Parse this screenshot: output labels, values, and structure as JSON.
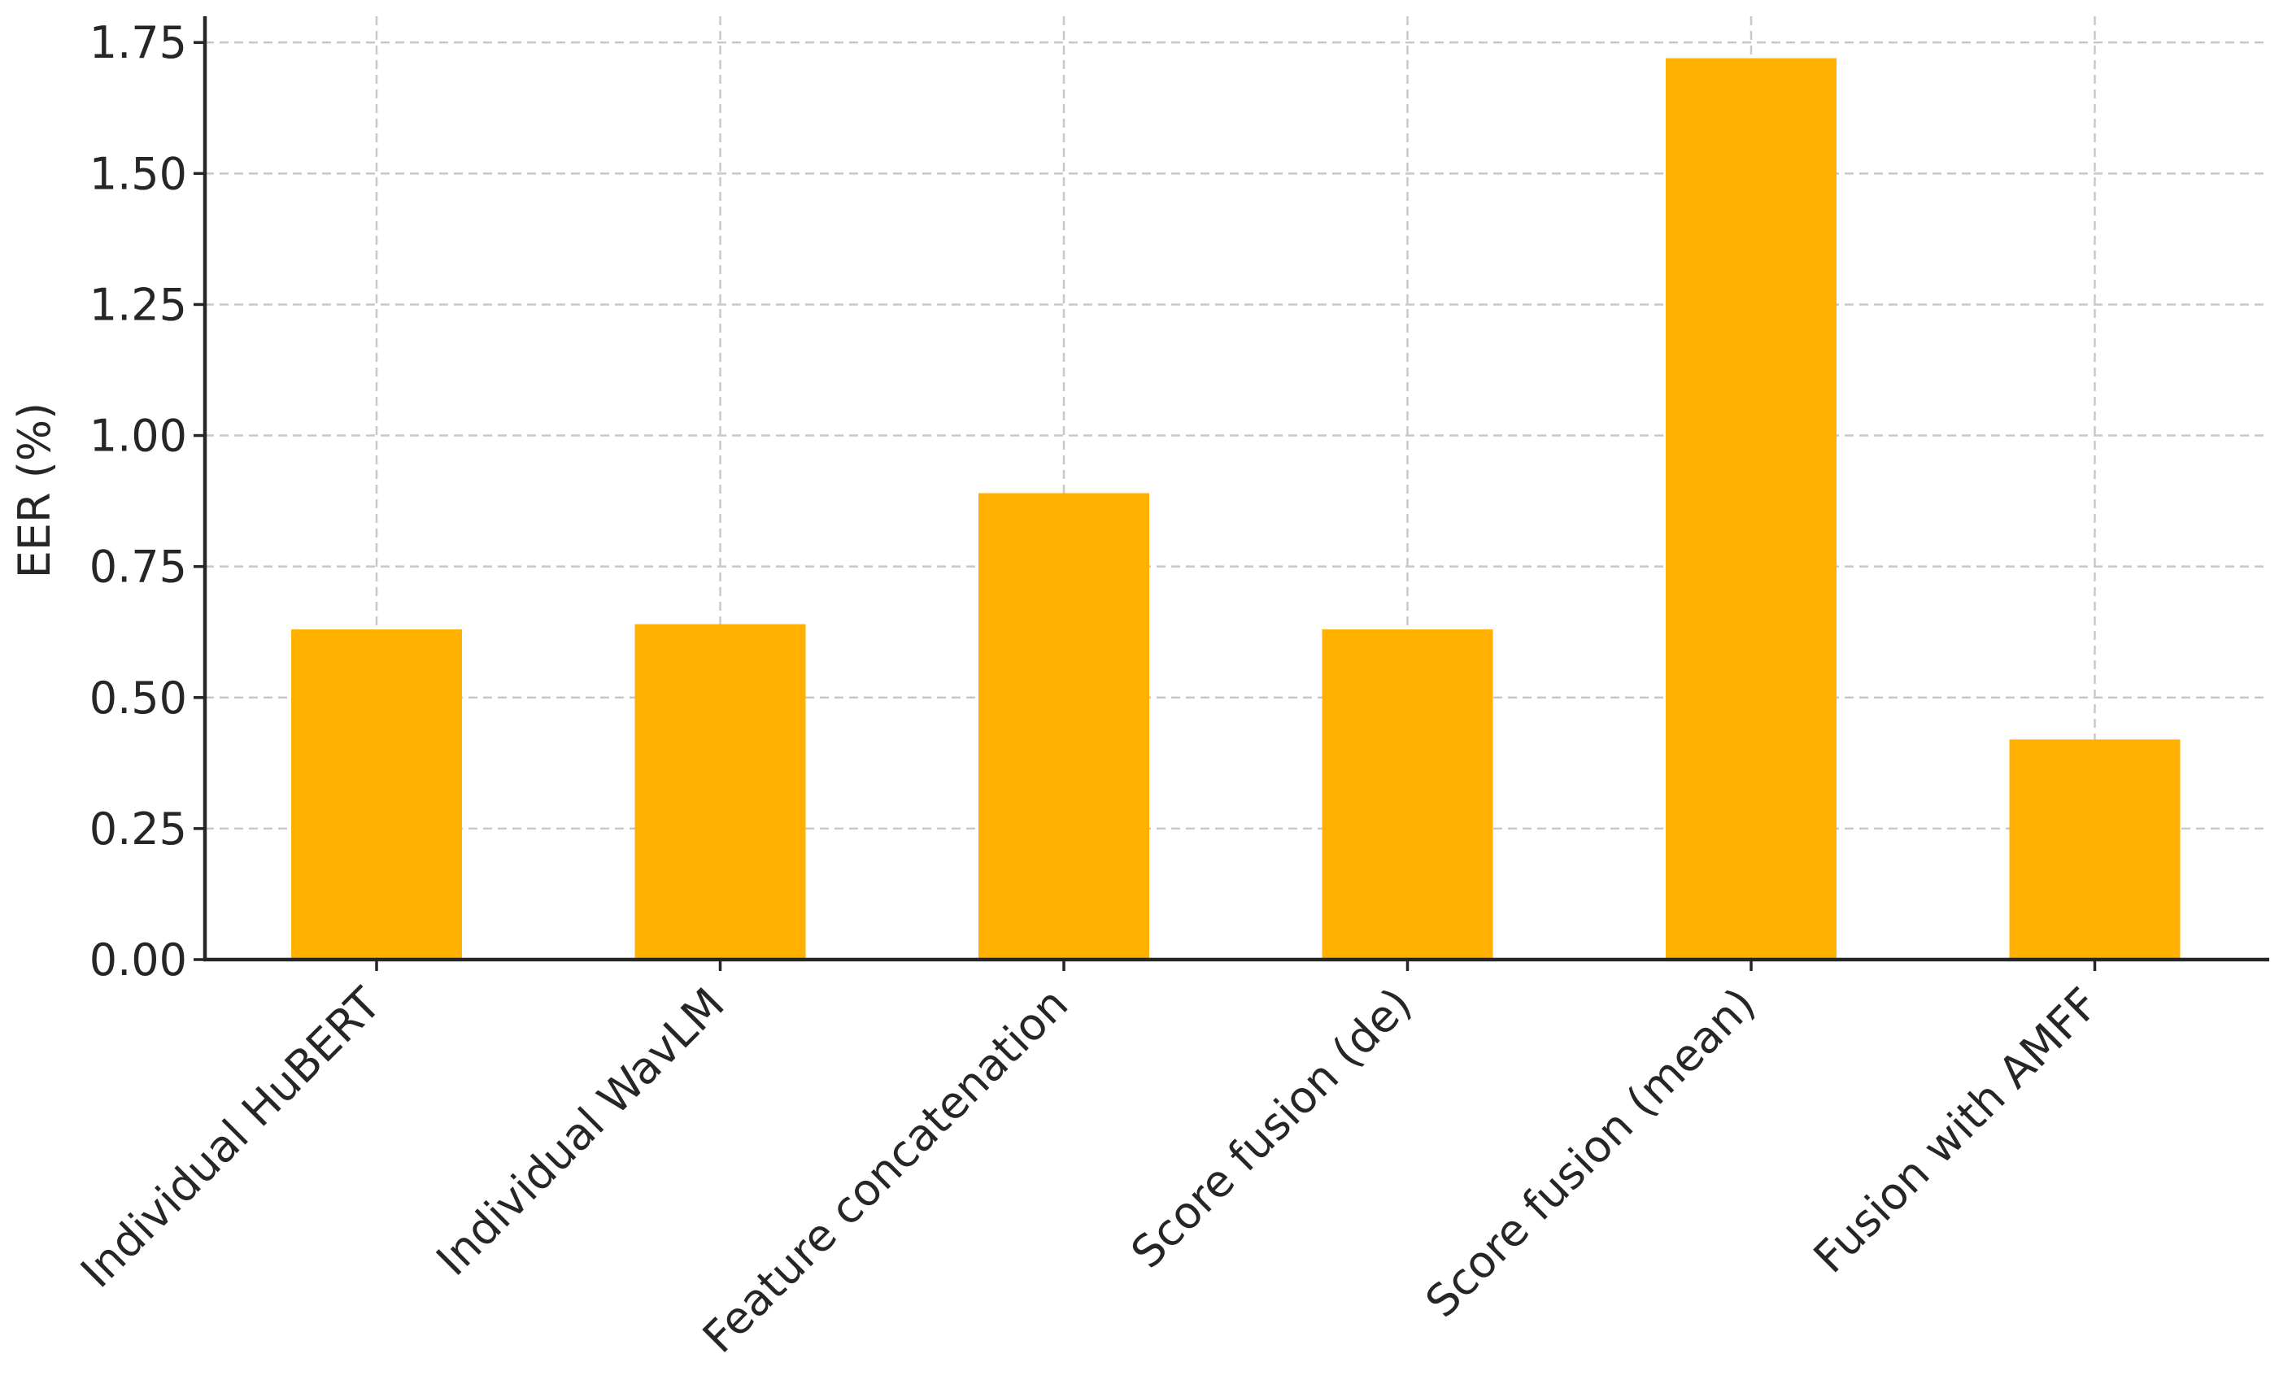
{
  "chart_data": {
    "type": "bar",
    "title": "",
    "xlabel": "",
    "ylabel": "EER (%)",
    "categories": [
      "Individual HuBERT",
      "Individual WavLM",
      "Feature concatenation",
      "Score fusion (de)",
      "Score fusion (mean)",
      "Fusion with AMFF"
    ],
    "values": [
      0.63,
      0.64,
      0.89,
      0.63,
      1.72,
      0.42
    ],
    "ylim": [
      0,
      1.8
    ],
    "yticks": [
      "0.00",
      "0.25",
      "0.50",
      "0.75",
      "1.00",
      "1.25",
      "1.50",
      "1.75"
    ],
    "grid": true,
    "bar_color": "#FFB000"
  }
}
